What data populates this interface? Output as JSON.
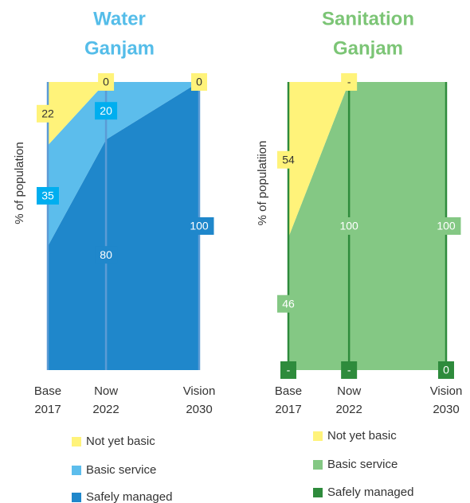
{
  "chart_data": [
    {
      "type": "stacked_area",
      "title": "Water",
      "subtitle": "Ganjam",
      "title_color": "#55bde9",
      "y_label": "% of population",
      "categories": [
        "Base",
        "Now",
        "Vision"
      ],
      "x": [
        2017,
        2022,
        2030
      ],
      "xlim": [
        2017,
        2030
      ],
      "ylim": [
        0,
        100
      ],
      "series": [
        {
          "name": "Safely managed",
          "color": "#1f87cb",
          "label_color": "#1f87cb",
          "values": [
            43,
            80,
            100
          ],
          "value_labels": [
            null,
            "80",
            "100"
          ]
        },
        {
          "name": "Basic service",
          "color": "#5cbdec",
          "label_color": "#00aeef",
          "values": [
            35,
            20,
            0
          ],
          "value_labels": [
            "35",
            "20",
            null
          ]
        },
        {
          "name": "Not yet basic",
          "color": "#fff37a",
          "label_color": "#fff37a",
          "values": [
            22,
            0,
            0
          ],
          "value_labels": [
            "22",
            "0",
            "0"
          ]
        }
      ]
    },
    {
      "type": "stacked_area",
      "title": "Sanitation",
      "subtitle": "Ganjam",
      "title_color": "#7cc576",
      "y_label": "% of populatiion",
      "categories": [
        "Base",
        "Now",
        "Vision"
      ],
      "x": [
        2017,
        2022,
        2030
      ],
      "xlim": [
        2017,
        2030
      ],
      "ylim": [
        0,
        100
      ],
      "series": [
        {
          "name": "Safely managed",
          "color": "#2e8b3c",
          "label_color": "#2e8b3c",
          "values": [
            0,
            0,
            0
          ],
          "value_labels": [
            "-",
            "-",
            "0"
          ]
        },
        {
          "name": "Basic service",
          "color": "#84c884",
          "label_color": "#84c884",
          "values": [
            46,
            100,
            100
          ],
          "value_labels": [
            "46",
            "100",
            "100"
          ]
        },
        {
          "name": "Not yet basic",
          "color": "#fff37a",
          "label_color": "#fff37a",
          "values": [
            54,
            0,
            0
          ],
          "value_labels": [
            "54",
            "-",
            null
          ]
        }
      ]
    }
  ]
}
